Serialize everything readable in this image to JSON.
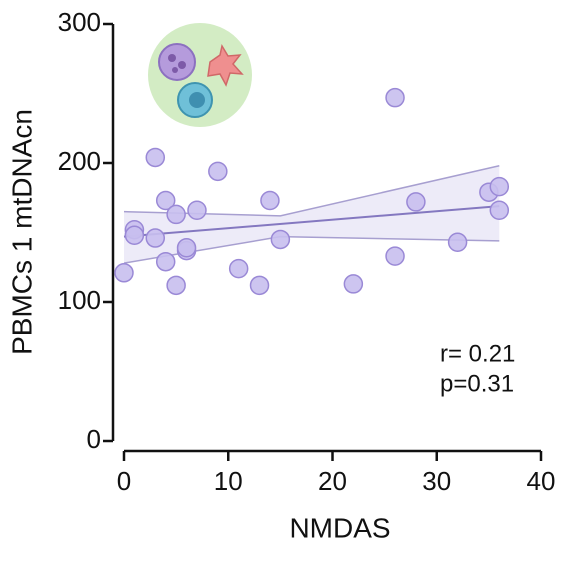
{
  "chart_data": {
    "type": "scatter",
    "x_label": "NMDAS",
    "y_label": "PBMCs 1 mtDNAcn",
    "xlim": [
      0,
      40
    ],
    "xticks": [
      0,
      10,
      20,
      30,
      40
    ],
    "ylim": [
      0,
      300
    ],
    "yticks": [
      0,
      100,
      200,
      300
    ],
    "x": [
      0,
      1,
      1,
      3,
      3,
      4,
      4,
      5,
      5,
      6,
      6,
      7,
      9,
      11,
      13,
      14,
      15,
      22,
      26,
      26,
      28,
      32,
      35,
      36,
      36
    ],
    "y": [
      121,
      152,
      148,
      146,
      204,
      173,
      129,
      163,
      112,
      137,
      139,
      166,
      194,
      124,
      112,
      173,
      145,
      113,
      247,
      133,
      172,
      143,
      179,
      183,
      166
    ],
    "color": "#c8bfee",
    "edge_color": "#9a89d6",
    "fit": {
      "x": [
        0,
        36
      ],
      "y": [
        147,
        169
      ],
      "color": "#8478c0"
    },
    "ci_upper": {
      "x": [
        0,
        15,
        36
      ],
      "y": [
        165,
        162,
        198
      ]
    },
    "ci_lower": {
      "x": [
        0,
        15,
        36
      ],
      "y": [
        128,
        147,
        144
      ]
    },
    "annotations": [
      "r= 0.21",
      "p=0.31"
    ]
  }
}
